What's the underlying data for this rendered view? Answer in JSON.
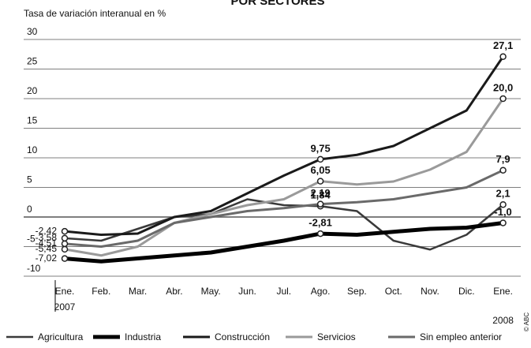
{
  "chart_data": {
    "type": "line",
    "title": "POR SECTORES",
    "subtitle": "Tasa de variación interanual en %",
    "categories": [
      "Ene.",
      "Feb.",
      "Mar.",
      "Abr.",
      "May.",
      "Jun.",
      "Jul.",
      "Ago.",
      "Sep.",
      "Oct.",
      "Nov.",
      "Dic.",
      "Ene."
    ],
    "years": [
      "2007",
      "2008"
    ],
    "ylim": [
      -10,
      30
    ],
    "yticks": [
      -10,
      -5,
      0,
      5,
      10,
      15,
      20,
      25,
      30
    ],
    "grid": true,
    "legend": "bottom",
    "credit": "© ABC",
    "series": [
      {
        "name": "Agricultura",
        "color": "#3a3a3a",
        "width": 2.5,
        "values": [
          -3.58,
          -4,
          -2,
          0,
          0.5,
          3,
          2,
          1.84,
          1,
          -4,
          -5.5,
          -3,
          2.1
        ],
        "value_labels": [
          "-3,58",
          null,
          null,
          null,
          null,
          null,
          null,
          "1,84",
          null,
          null,
          null,
          null,
          "2,1"
        ]
      },
      {
        "name": "Industria",
        "color": "#000000",
        "width": 5,
        "values": [
          -7.02,
          -7.5,
          -7,
          -6.5,
          -6,
          -5,
          -4,
          -2.81,
          -3,
          -2.5,
          -2,
          -1.8,
          -1.0
        ],
        "value_labels": [
          "-7,02",
          null,
          null,
          null,
          null,
          null,
          null,
          "-2,81",
          null,
          null,
          null,
          null,
          "-1,0"
        ]
      },
      {
        "name": "Construcción",
        "color": "#1a1a1a",
        "width": 3,
        "values": [
          -2.42,
          -3,
          -2.8,
          0,
          1,
          4,
          7,
          9.75,
          10.5,
          12,
          15,
          18,
          27.1
        ],
        "value_labels": [
          "-2,42",
          null,
          null,
          null,
          null,
          null,
          null,
          "9,75",
          null,
          null,
          null,
          null,
          "27,1"
        ]
      },
      {
        "name": "Servicios",
        "color": "#9a9a9a",
        "width": 3,
        "values": [
          -5.45,
          -6.5,
          -5,
          -1,
          0.5,
          2,
          3,
          6.05,
          5.5,
          6,
          8,
          11,
          20.0
        ],
        "value_labels": [
          "-5,45",
          null,
          null,
          null,
          null,
          null,
          null,
          "6,05",
          null,
          null,
          null,
          null,
          "20,0"
        ]
      },
      {
        "name": "Sin empleo anterior",
        "color": "#6a6a6a",
        "width": 3,
        "values": [
          -4.51,
          -5,
          -4,
          -1,
          0,
          1,
          1.5,
          2.19,
          2.5,
          3,
          4,
          5,
          7.9
        ],
        "value_labels": [
          "-4,51",
          null,
          null,
          null,
          null,
          null,
          null,
          "2,19",
          null,
          null,
          null,
          null,
          "7,9"
        ]
      }
    ]
  }
}
